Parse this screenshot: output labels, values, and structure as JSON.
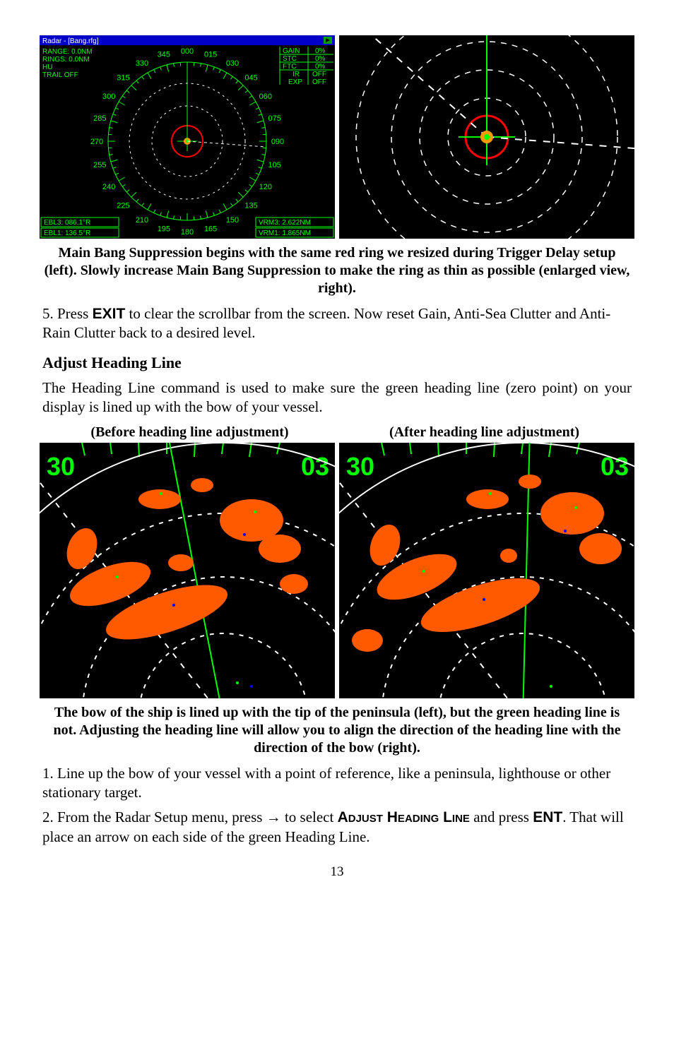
{
  "figure1": {
    "left_panel": {
      "title_bar": {
        "text": "Radar - [Bang.rfg]",
        "bg": "#0000c8",
        "fg": "#ffffff"
      },
      "range_label": "RANGE: 0.0NM",
      "rings_label": "RINGS: 0.0NM",
      "hu_label": "HU",
      "trail_label": "TRAIL   OFF",
      "gain_row": {
        "label": "GAIN",
        "value": "0%"
      },
      "stc_row": {
        "label": "STC",
        "value": "0%"
      },
      "ftc_row": {
        "label": "FTC",
        "value": "0%"
      },
      "ir_row": {
        "label": "IR",
        "value": "OFF"
      },
      "exp_row": {
        "label": "EXP",
        "value": "OFF"
      },
      "ebl3": "EBL3: 086.1°R",
      "ebl1": "EBL1: 136.5°R",
      "vrm3": "VRM3:     2.622NM",
      "vrm1": "VRM1:     1.865NM",
      "tick_labels": [
        "000",
        "015",
        "030",
        "045",
        "060",
        "075",
        "090",
        "105",
        "120",
        "135",
        "150",
        "165",
        "180",
        "195",
        "210",
        "225",
        "240",
        "255",
        "270",
        "285",
        "300",
        "315",
        "330",
        "345"
      ],
      "ring_color": "#ff0000",
      "compass_color": "#00ff00",
      "text_color": "#00ff00",
      "bg_color": "#000000",
      "center_dot_color": "#ff9900"
    },
    "right_panel": {
      "bg_color": "#000000",
      "ring_color": "#ff0000",
      "dash_color": "#ffffff",
      "center_colors": [
        "#ff9900",
        "#00ff00"
      ]
    },
    "caption": "Main Bang Suppression begins with the same red ring we resized during Trigger Delay setup (left). Slowly increase Main Bang Suppression to make the ring as thin as possible (enlarged view, right)."
  },
  "para_step5": {
    "num": "5. Press ",
    "key": "EXIT",
    "rest": " to clear the scrollbar from the screen. Now reset Gain, Anti-Sea Clutter and Anti-Rain Clutter back to a desired level."
  },
  "heading_section": "Adjust Heading Line",
  "para_heading_desc": "The Heading Line command is used to make sure the green heading line (zero point) on your display is lined up with the bow of your vessel.",
  "figure2": {
    "label_left": "(Before heading line adjustment)",
    "label_right": "(After heading line adjustment)",
    "left_edge": "30",
    "right_edge_a": "03",
    "left_edge_b": "30",
    "right_edge_b": "03",
    "bg_color": "#000000",
    "return_color": "#ff5a00",
    "accent_green": "#00ff00",
    "accent_blue": "#0000ff",
    "ring_color": "#ffffff",
    "caption": "The bow of the ship is lined up with the tip of the peninsula (left), but the green heading line is not. Adjusting the heading line will allow you to align the direction of the heading line with the direction of the bow (right)."
  },
  "para_step1": "1. Line up the bow of your vessel with a point of reference, like a peninsula, lighthouse or other stationary target.",
  "para_step2": {
    "a": "2. From the Radar Setup menu, press → to select ",
    "cmd": "Adjust Heading Line",
    "b": " and press ",
    "key": "ENT",
    "c": ". That will place an arrow on each side of the green Heading Line."
  },
  "page_number": "13"
}
